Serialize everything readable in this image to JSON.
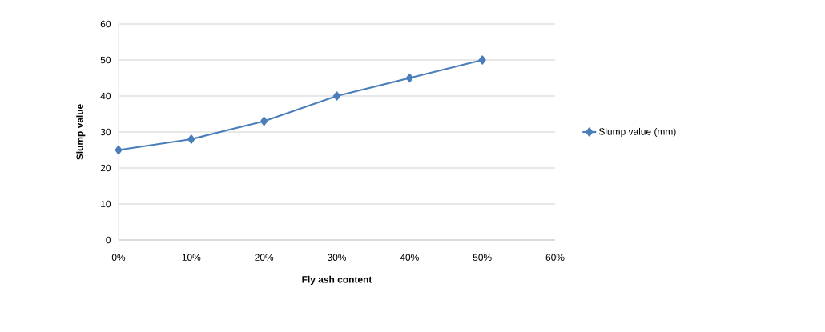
{
  "chart_data": {
    "type": "line",
    "xlabel": "Fly ash content",
    "ylabel": "Slump value",
    "x": [
      0,
      0.1,
      0.2,
      0.3,
      0.4,
      0.5
    ],
    "series": [
      {
        "name": "Slump value (mm)",
        "color": "#4a7ebb",
        "values": [
          25,
          28,
          33,
          40,
          45,
          50
        ]
      }
    ],
    "xlim": [
      0,
      0.6
    ],
    "xticks": [
      {
        "value": 0,
        "label": "0%"
      },
      {
        "value": 0.1,
        "label": "10%"
      },
      {
        "value": 0.2,
        "label": "20%"
      },
      {
        "value": 0.3,
        "label": "30%"
      },
      {
        "value": 0.4,
        "label": "40%"
      },
      {
        "value": 0.5,
        "label": "50%"
      },
      {
        "value": 0.6,
        "label": "60%"
      }
    ],
    "ylim": [
      0,
      60
    ],
    "yticks": [
      0,
      10,
      20,
      30,
      40,
      50,
      60
    ],
    "grid": "y",
    "legend": "right",
    "marker": "diamond",
    "line_style": "solid"
  }
}
